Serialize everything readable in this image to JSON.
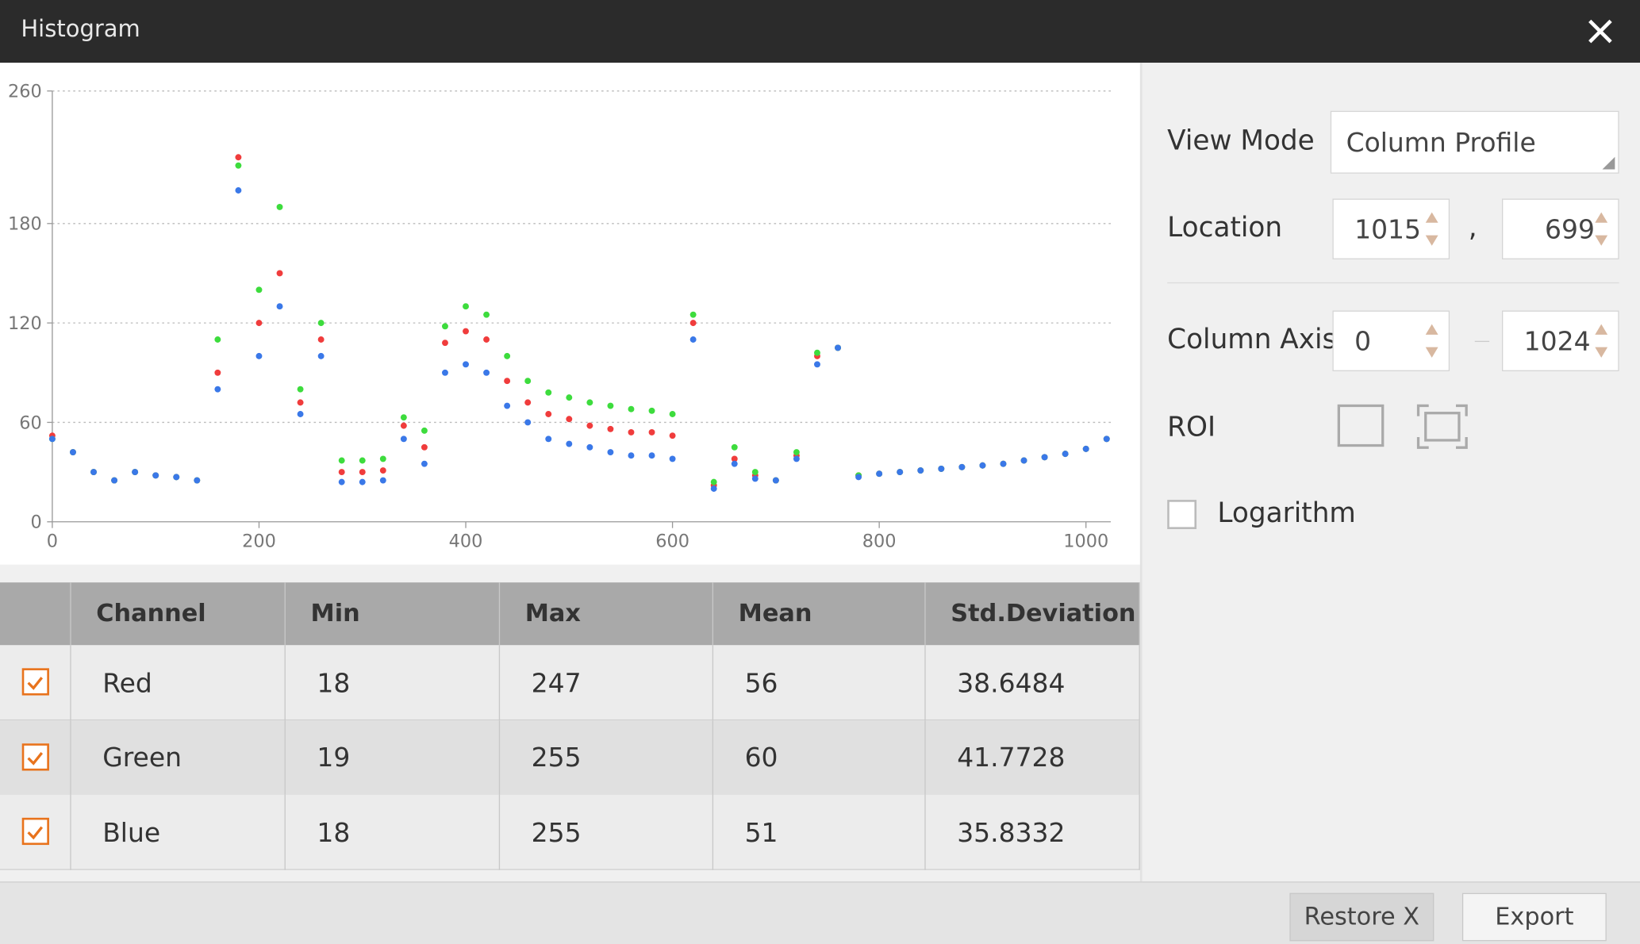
{
  "window": {
    "title": "Histogram"
  },
  "chart_data": {
    "type": "scatter",
    "x": [
      0,
      20,
      40,
      60,
      80,
      100,
      120,
      140,
      160,
      180,
      200,
      220,
      240,
      260,
      280,
      300,
      320,
      340,
      360,
      380,
      400,
      420,
      440,
      460,
      480,
      500,
      520,
      540,
      560,
      580,
      600,
      620,
      640,
      660,
      680,
      700,
      720,
      740,
      760,
      780,
      800,
      820,
      840,
      860,
      880,
      900,
      920,
      940,
      960,
      980,
      1000,
      1020
    ],
    "series": [
      {
        "name": "Red",
        "color": "#f03c3c",
        "values": [
          52,
          42,
          30,
          25,
          30,
          28,
          27,
          25,
          90,
          220,
          120,
          150,
          72,
          110,
          30,
          30,
          31,
          58,
          45,
          108,
          115,
          110,
          85,
          72,
          65,
          62,
          58,
          56,
          54,
          54,
          52,
          120,
          22,
          38,
          28,
          25,
          40,
          100,
          105,
          28,
          29,
          30,
          31,
          32,
          33,
          34,
          35,
          37,
          39,
          41,
          44,
          50
        ]
      },
      {
        "name": "Green",
        "color": "#3ddc3d",
        "values": [
          50,
          42,
          30,
          25,
          30,
          28,
          27,
          25,
          110,
          215,
          140,
          190,
          80,
          120,
          37,
          37,
          38,
          63,
          55,
          118,
          130,
          125,
          100,
          85,
          78,
          75,
          72,
          70,
          68,
          67,
          65,
          125,
          24,
          45,
          30,
          25,
          42,
          102,
          105,
          28,
          29,
          30,
          31,
          32,
          33,
          34,
          35,
          37,
          39,
          41,
          44,
          50
        ]
      },
      {
        "name": "Blue",
        "color": "#3a78e8",
        "values": [
          50,
          42,
          30,
          25,
          30,
          28,
          27,
          25,
          80,
          200,
          100,
          130,
          65,
          100,
          24,
          24,
          25,
          50,
          35,
          90,
          95,
          90,
          70,
          60,
          50,
          47,
          45,
          42,
          40,
          40,
          38,
          110,
          20,
          35,
          26,
          25,
          38,
          95,
          105,
          27,
          29,
          30,
          31,
          32,
          33,
          34,
          35,
          37,
          39,
          41,
          44,
          50
        ]
      }
    ],
    "xlim": [
      0,
      1024
    ],
    "xticks": [
      0,
      200,
      400,
      600,
      800,
      1000
    ],
    "ylim": [
      0,
      260
    ],
    "yticks": [
      0,
      60,
      120,
      180,
      260
    ],
    "grid": true
  },
  "table": {
    "columns": [
      "Channel",
      "Min",
      "Max",
      "Mean",
      "Std.Deviation"
    ],
    "rows": [
      [
        "Red",
        18,
        247,
        56,
        38.6484
      ],
      [
        "Green",
        19,
        255,
        60,
        41.7728
      ],
      [
        "Blue",
        18,
        255,
        51,
        35.8332
      ]
    ]
  },
  "panel": {
    "view_mode_label": "View Mode",
    "view_mode": "Column Profile",
    "location_label": "Location",
    "location_x": "1015",
    "location_sep": ",",
    "location_y": "699",
    "column_axis_label": "Column Axis",
    "column_axis_from": "0",
    "column_axis_to": "1024",
    "roi_label": "ROI",
    "logarithm_label": "Logarithm"
  },
  "buttons": [
    "Restore X",
    "Export"
  ]
}
